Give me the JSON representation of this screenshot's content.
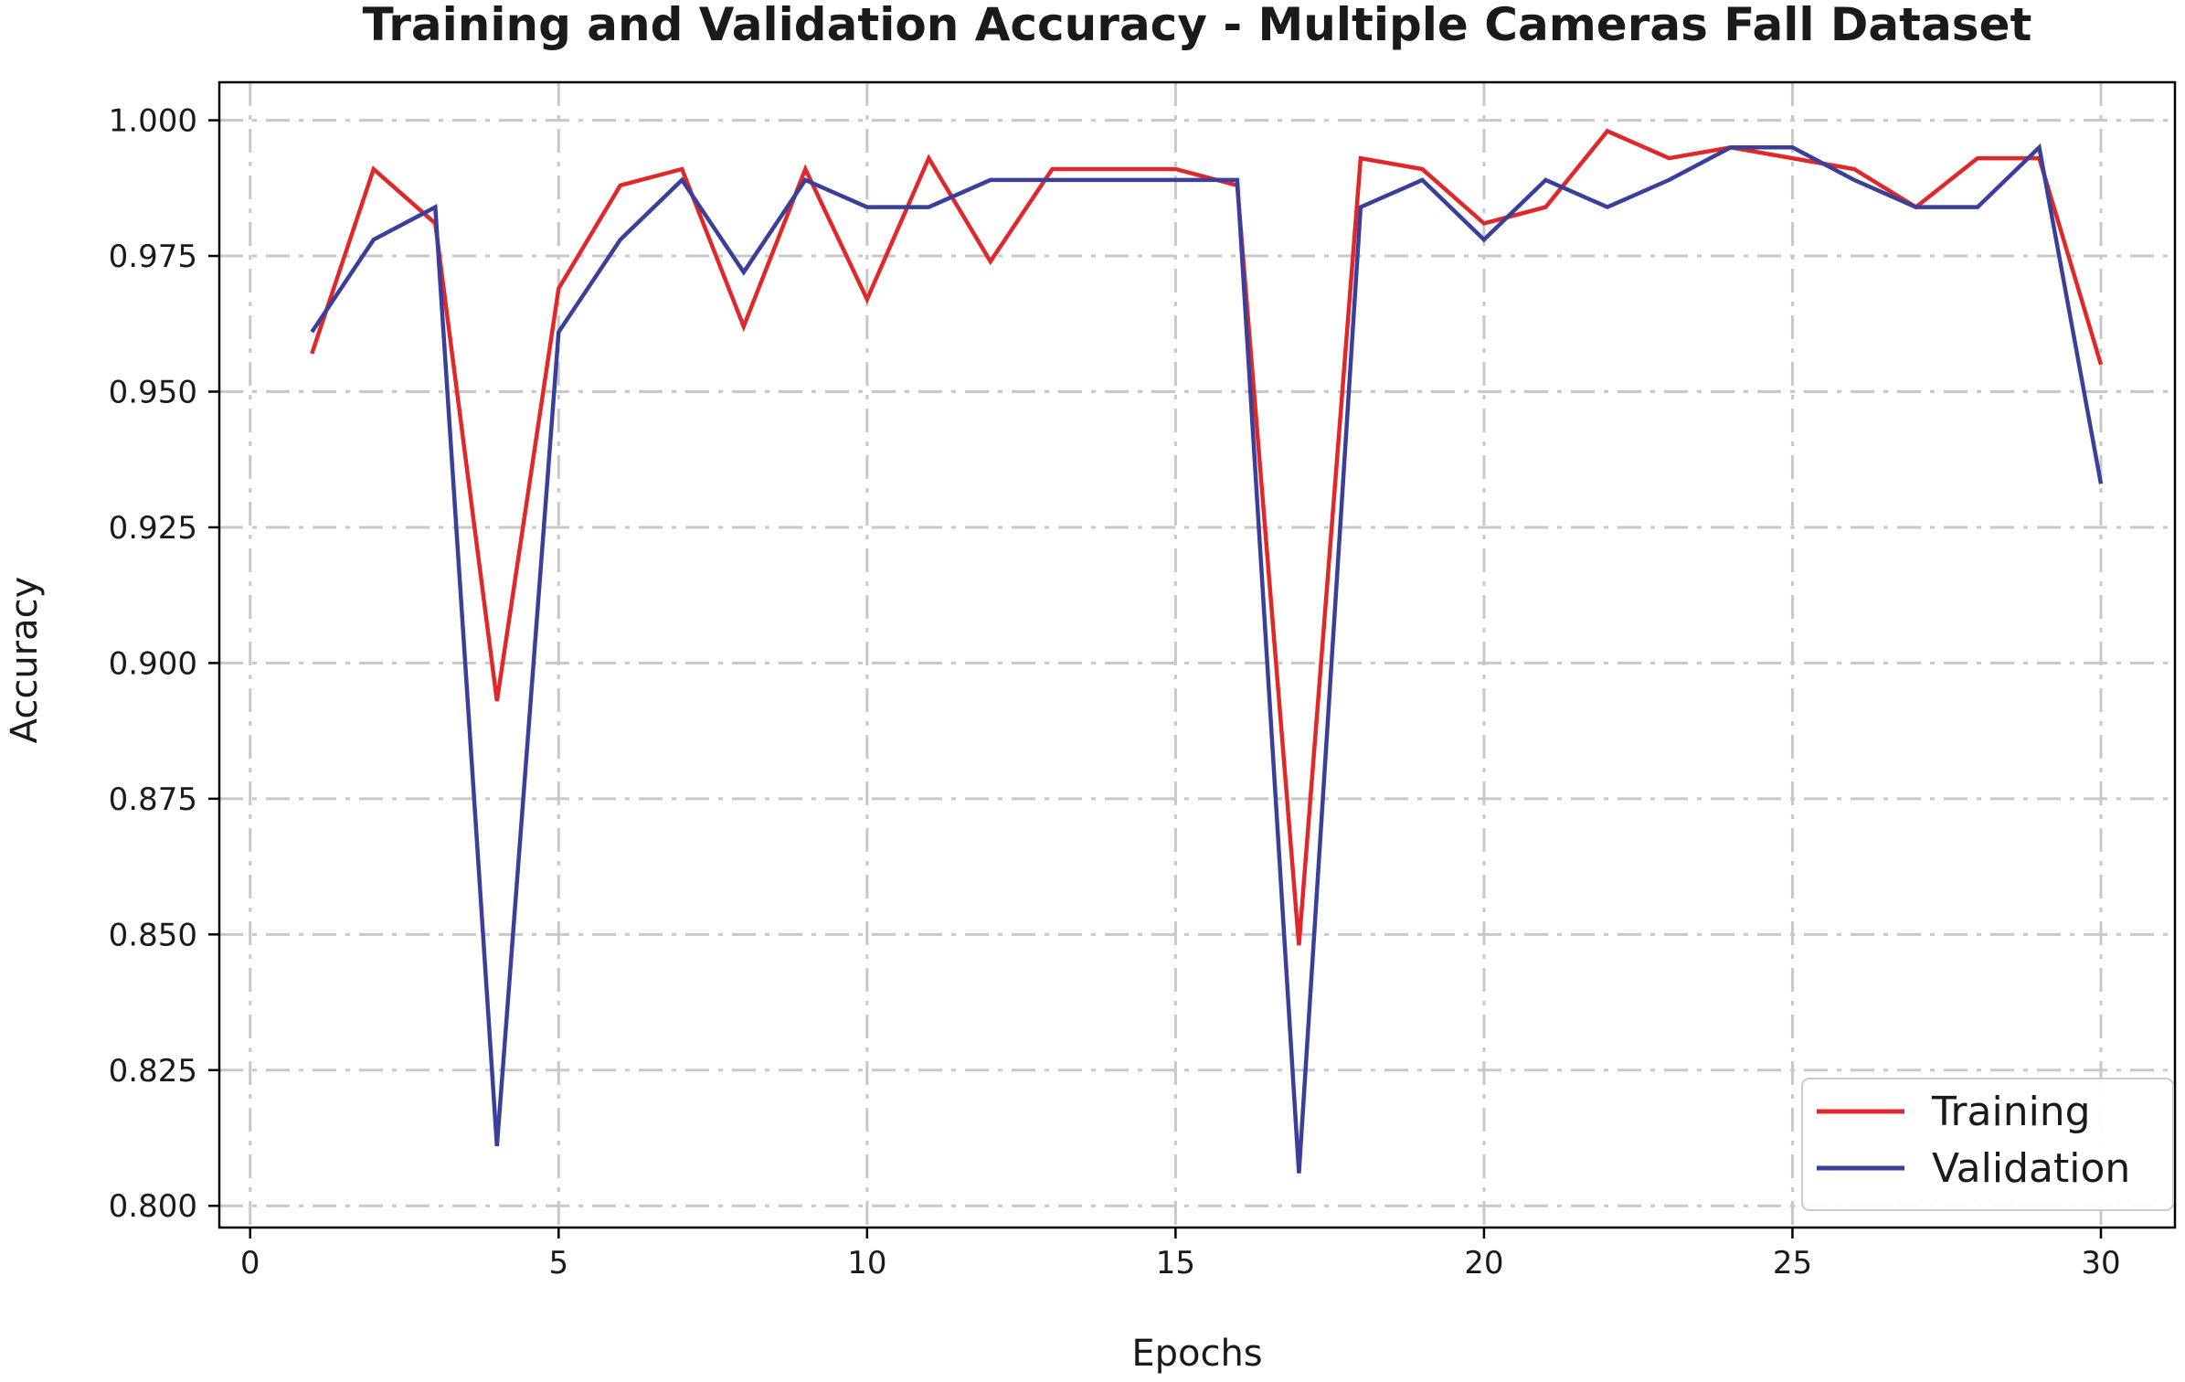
{
  "chart_data": {
    "type": "line",
    "title": "Training and Validation Accuracy - Multiple Cameras Fall Dataset",
    "xlabel": "Epochs",
    "ylabel": "Accuracy",
    "xlim": [
      -0.5,
      31.2
    ],
    "ylim": [
      0.796,
      1.007
    ],
    "xticks": [
      0,
      5,
      10,
      15,
      20,
      25,
      30
    ],
    "xtick_labels": [
      "0",
      "5",
      "10",
      "15",
      "20",
      "25",
      "30"
    ],
    "yticks": [
      0.8,
      0.825,
      0.85,
      0.875,
      0.9,
      0.925,
      0.95,
      0.975,
      1.0
    ],
    "ytick_labels": [
      "0.800",
      "0.825",
      "0.850",
      "0.875",
      "0.900",
      "0.925",
      "0.950",
      "0.975",
      "1.000"
    ],
    "grid": true,
    "grid_style": "dash-dot",
    "legend_position": "lower-right",
    "x": [
      1,
      2,
      3,
      4,
      5,
      6,
      7,
      8,
      9,
      10,
      11,
      12,
      13,
      14,
      15,
      16,
      17,
      18,
      19,
      20,
      21,
      22,
      23,
      24,
      25,
      26,
      27,
      28,
      29,
      30
    ],
    "series": [
      {
        "name": "Training",
        "color": "#e0282a",
        "values": [
          0.957,
          0.991,
          0.981,
          0.893,
          0.969,
          0.988,
          0.991,
          0.962,
          0.991,
          0.967,
          0.993,
          0.974,
          0.991,
          0.991,
          0.991,
          0.988,
          0.848,
          0.993,
          0.991,
          0.981,
          0.984,
          0.998,
          0.993,
          0.995,
          0.993,
          0.991,
          0.984,
          0.993,
          0.993,
          0.955
        ]
      },
      {
        "name": "Validation",
        "color": "#3a3f9a",
        "values": [
          0.961,
          0.978,
          0.984,
          0.811,
          0.961,
          0.978,
          0.989,
          0.972,
          0.989,
          0.984,
          0.984,
          0.989,
          0.989,
          0.989,
          0.989,
          0.989,
          0.806,
          0.984,
          0.989,
          0.978,
          0.989,
          0.984,
          0.989,
          0.995,
          0.995,
          0.989,
          0.984,
          0.984,
          0.995,
          0.933
        ]
      }
    ]
  }
}
